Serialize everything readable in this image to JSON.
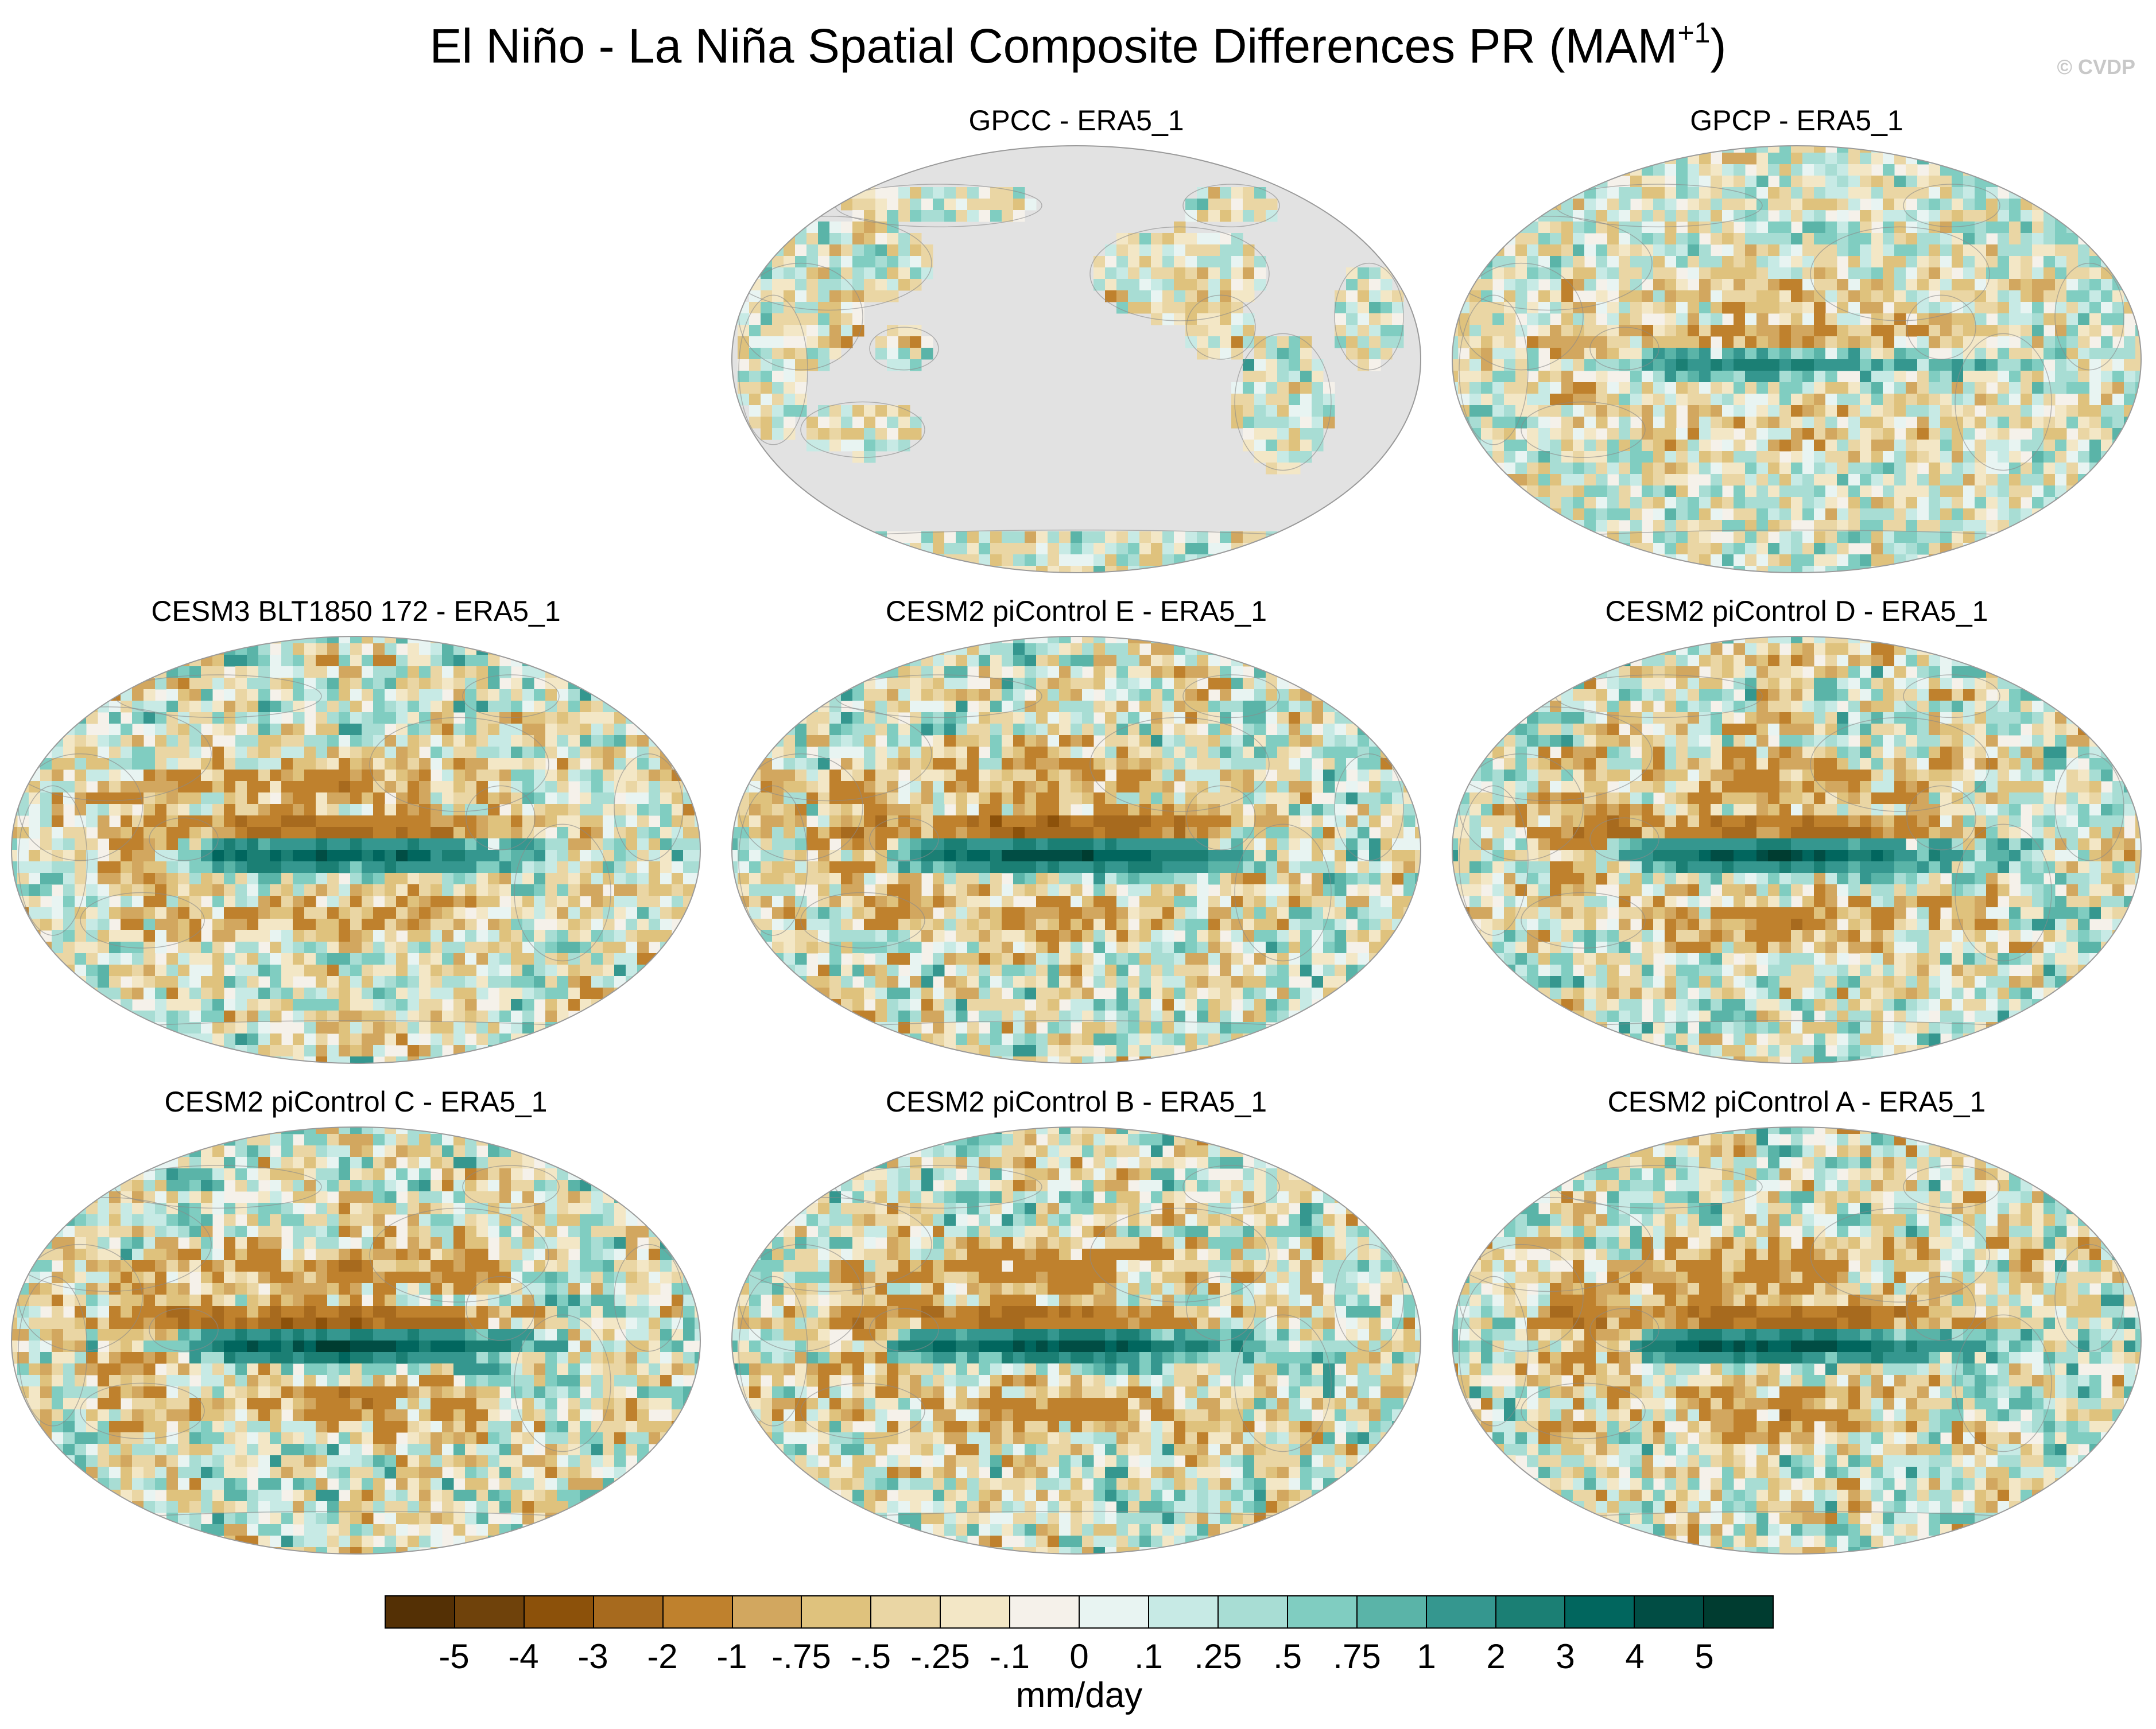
{
  "header": {
    "title_main": "El Niño - La Niña Spatial Composite Differences PR (MAM",
    "title_sup": "+1",
    "title_end": ")",
    "credit": "© CVDP"
  },
  "panels": [
    {
      "title": "GPCC - ERA5_1",
      "kind": "land-only",
      "strength": 0.35
    },
    {
      "title": "GPCP - ERA5_1",
      "kind": "global",
      "strength": 0.45
    },
    {
      "title": "CESM3 BLT1850 172 - ERA5_1",
      "kind": "global",
      "strength": 0.85
    },
    {
      "title": "CESM2 piControl E - ERA5_1",
      "kind": "global",
      "strength": 1.0
    },
    {
      "title": "CESM2 piControl D - ERA5_1",
      "kind": "global",
      "strength": 0.95
    },
    {
      "title": "CESM2 piControl C - ERA5_1",
      "kind": "global",
      "strength": 1.0
    },
    {
      "title": "CESM2 piControl B - ERA5_1",
      "kind": "global",
      "strength": 0.95
    },
    {
      "title": "CESM2 piControl A - ERA5_1",
      "kind": "global",
      "strength": 0.95
    }
  ],
  "chart_data": {
    "type": "heatmap",
    "title": "El Niño - La Niña Spatial Composite Differences PR (MAM+1)",
    "projection": "Robinson (Pacific-centered)",
    "units": "mm/day",
    "panel_titles": [
      "GPCC - ERA5_1",
      "GPCP - ERA5_1",
      "CESM3 BLT1850 172 - ERA5_1",
      "CESM2 piControl E - ERA5_1",
      "CESM2 piControl D - ERA5_1",
      "CESM2 piControl C - ERA5_1",
      "CESM2 piControl B - ERA5_1",
      "CESM2 piControl A - ERA5_1"
    ],
    "colorbar_labels": [
      "-5",
      "-4",
      "-3",
      "-2",
      "-1",
      "-.75",
      "-.5",
      "-.25",
      "-.1",
      "0",
      ".1",
      ".25",
      ".5",
      ".75",
      "1",
      "2",
      "3",
      "4",
      "5"
    ],
    "colorbar_levels": [
      -5,
      -4,
      -3,
      -2,
      -1,
      -0.75,
      -0.5,
      -0.25,
      -0.1,
      0,
      0.1,
      0.25,
      0.5,
      0.75,
      1,
      2,
      3,
      4,
      5
    ],
    "colorbar_colors": [
      "#543005",
      "#6f420b",
      "#8c510a",
      "#a76a1e",
      "#bf812d",
      "#d2a75f",
      "#dfc27d",
      "#ead6a4",
      "#f3e7c6",
      "#f5f1ea",
      "#e8f4f2",
      "#c7eae5",
      "#a8ddd4",
      "#80cdc1",
      "#5ab4a8",
      "#35978f",
      "#1b7f74",
      "#01665e",
      "#014d44",
      "#003c30"
    ]
  }
}
